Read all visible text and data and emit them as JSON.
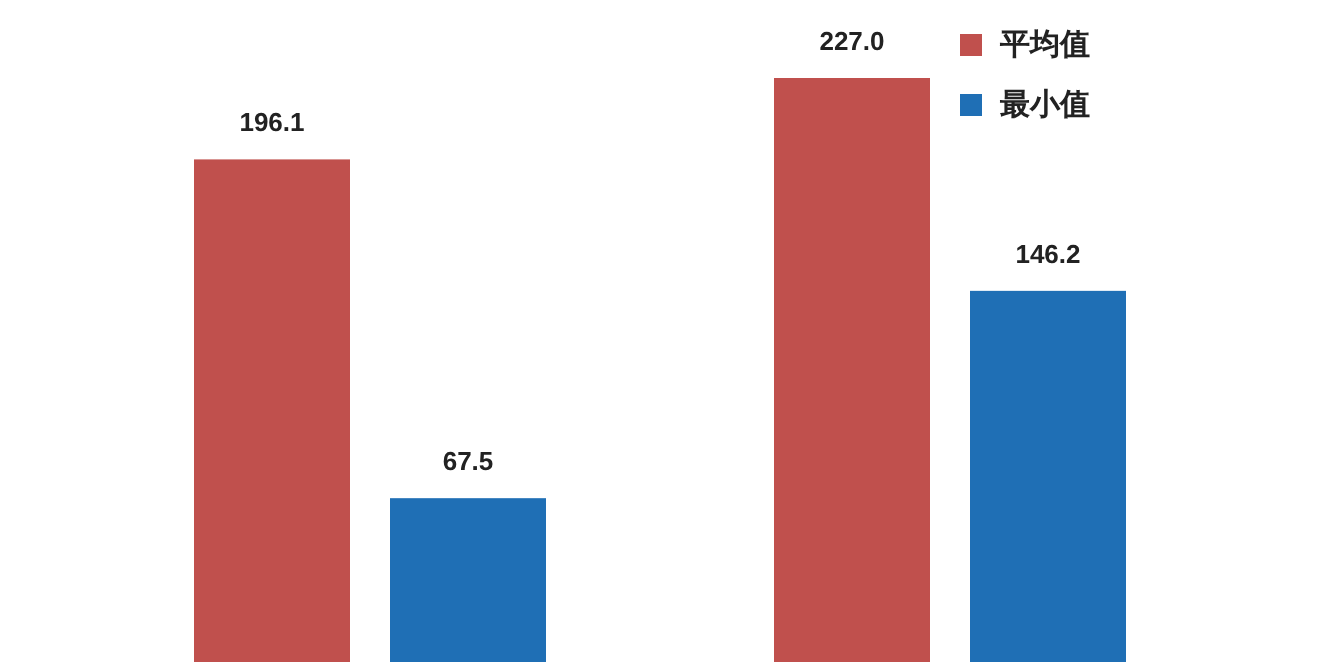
{
  "chart_data": {
    "type": "bar",
    "categories": [
      null,
      null
    ],
    "series": [
      {
        "name": "平均值",
        "color": "#c0504d",
        "values": [
          196.1,
          227.0
        ],
        "value_labels": [
          "196.1",
          "227.0"
        ]
      },
      {
        "name": "最小值",
        "color": "#1f6fb5",
        "values": [
          67.5,
          146.2
        ],
        "value_labels": [
          "67.5",
          "146.2"
        ]
      }
    ],
    "legend": "top right",
    "grid": false
  }
}
